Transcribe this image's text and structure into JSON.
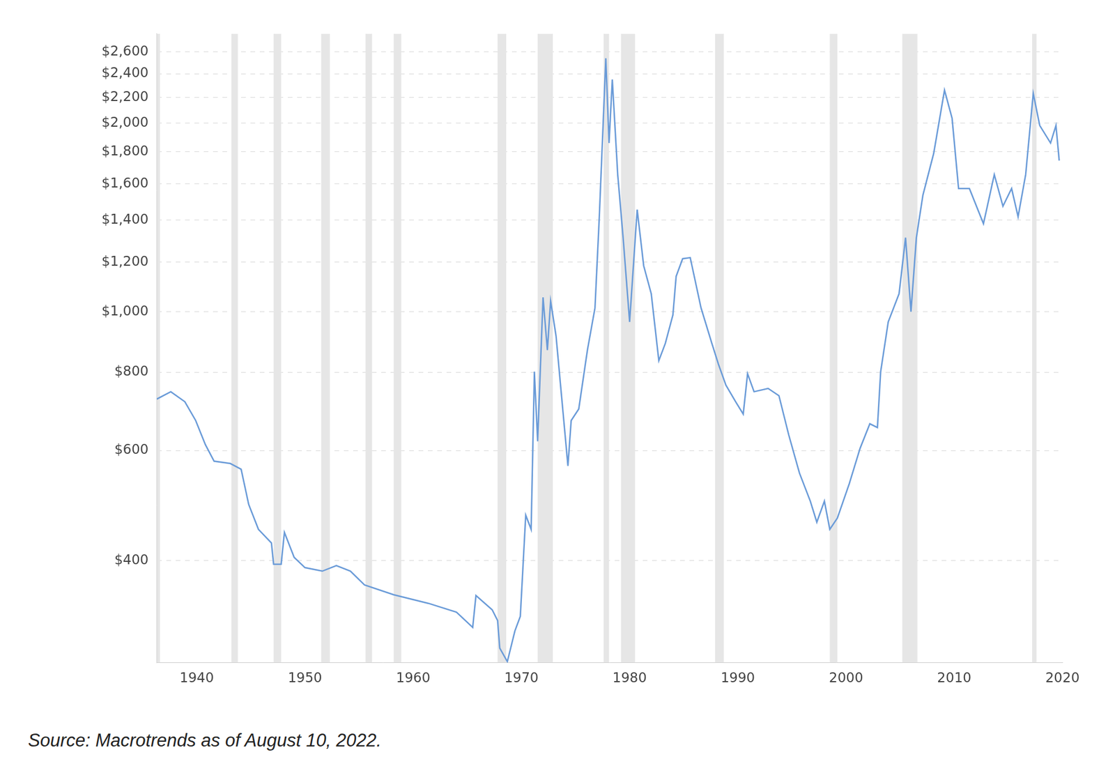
{
  "chart_data": {
    "type": "line",
    "source": "Source: Macrotrends as of August 10, 2022.",
    "x": [
      1936.3,
      1937.6,
      1938.9,
      1939.9,
      1940.8,
      1941.6,
      1943.1,
      1944.1,
      1944.8,
      1945.7,
      1946.9,
      1947.1,
      1947.8,
      1948.1,
      1949.0,
      1950.0,
      1951.6,
      1952.9,
      1954.2,
      1955.5,
      1958.2,
      1961.4,
      1964.0,
      1965.5,
      1965.8,
      1967.3,
      1967.8,
      1968.0,
      1968.7,
      1969.4,
      1969.9,
      1970.4,
      1970.9,
      1971.2,
      1971.5,
      1972.0,
      1972.4,
      1972.7,
      1973.2,
      1973.8,
      1974.3,
      1974.6,
      1975.3,
      1976.1,
      1976.8,
      1977.2,
      1977.8,
      1978.1,
      1978.4,
      1978.9,
      1979.4,
      1980.0,
      1980.7,
      1981.3,
      1982.0,
      1982.7,
      1983.3,
      1984.0,
      1984.3,
      1984.9,
      1985.6,
      1986.6,
      1987.6,
      1988.2,
      1988.9,
      1989.8,
      1990.5,
      1990.9,
      1991.5,
      1992.8,
      1993.8,
      1994.7,
      1995.7,
      1996.7,
      1997.3,
      1998.0,
      1998.5,
      1999.2,
      2000.3,
      2001.3,
      2002.2,
      2002.9,
      2003.2,
      2003.9,
      2004.9,
      2005.5,
      2006.0,
      2006.5,
      2007.1,
      2008.1,
      2009.1,
      2009.8,
      2010.4,
      2011.4,
      2012.7,
      2013.7,
      2014.5,
      2015.3,
      2015.9,
      2016.6,
      2017.3,
      2017.9,
      2018.9,
      2019.4,
      2019.7
    ],
    "values": [
      725,
      745,
      718,
      670,
      613,
      577,
      572,
      560,
      492,
      449,
      427,
      395,
      395,
      444,
      405,
      390,
      385,
      393,
      385,
      366,
      353,
      342,
      331,
      313,
      352,
      334,
      321,
      290,
      276,
      309,
      326,
      473,
      449,
      802,
      621,
      1054,
      868,
      1040,
      915,
      705,
      567,
      670,
      699,
      868,
      1014,
      1418,
      2540,
      1860,
      2350,
      1656,
      1313,
      963,
      1456,
      1184,
      1068,
      835,
      890,
      988,
      1139,
      1215,
      1220,
      1014,
      890,
      825,
      763,
      718,
      686,
      796,
      745,
      754,
      734,
      636,
      552,
      498,
      461,
      498,
      449,
      468,
      531,
      605,
      662,
      653,
      802,
      963,
      1068,
      1313,
      1000,
      1313,
      1534,
      1790,
      2259,
      2037,
      1573,
      1573,
      1382,
      1656,
      1474,
      1573,
      1418,
      1656,
      2232,
      1984,
      1860,
      1984,
      1744
    ],
    "color": "#6a9bd8",
    "shaded_periods": [
      [
        1936.3,
        1936.6
      ],
      [
        1943.2,
        1943.8
      ],
      [
        1947.1,
        1947.8
      ],
      [
        1951.5,
        1952.3
      ],
      [
        1955.6,
        1956.2
      ],
      [
        1958.2,
        1958.9
      ],
      [
        1967.8,
        1968.6
      ],
      [
        1971.5,
        1972.9
      ],
      [
        1977.6,
        1978.1
      ],
      [
        1979.2,
        1980.5
      ],
      [
        1987.9,
        1988.7
      ],
      [
        1998.5,
        1999.2
      ],
      [
        2005.2,
        2006.6
      ],
      [
        2017.2,
        2017.6
      ]
    ],
    "xlim": [
      1936.3,
      2020
    ],
    "xticks": [
      1940,
      1950,
      1960,
      1970,
      1980,
      1990,
      2000,
      2010,
      2020
    ],
    "ylim": [
      275,
      2780
    ],
    "yticks": [
      {
        "value": 400,
        "label": "$400"
      },
      {
        "value": 600,
        "label": "$600"
      },
      {
        "value": 800,
        "label": "$800"
      },
      {
        "value": 1000,
        "label": "$1,000"
      },
      {
        "value": 1200,
        "label": "$1,200"
      },
      {
        "value": 1400,
        "label": "$1,400"
      },
      {
        "value": 1600,
        "label": "$1,600"
      },
      {
        "value": 1800,
        "label": "$1,800"
      },
      {
        "value": 2000,
        "label": "$2,000"
      },
      {
        "value": 2200,
        "label": "$2,200"
      },
      {
        "value": 2400,
        "label": "$2,400"
      },
      {
        "value": 2600,
        "label": "$2,600"
      }
    ],
    "log": "y",
    "grid": true
  }
}
